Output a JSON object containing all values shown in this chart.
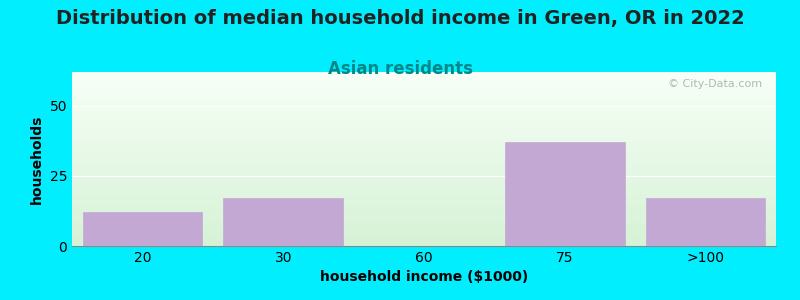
{
  "title": "Distribution of median household income in Green, OR in 2022",
  "subtitle": "Asian residents",
  "xlabel": "household income ($1000)",
  "ylabel": "households",
  "categories": [
    "20",
    "30",
    "60",
    "75",
    ">100"
  ],
  "values": [
    12,
    17,
    0,
    37,
    17
  ],
  "bar_color": "#c4a8d4",
  "bar_edgecolor": "#c4a8d4",
  "background_outer": "#00eeff",
  "plot_bg_top": "#f8fff8",
  "plot_bg_bottom": "#d8f0d8",
  "ylim": [
    0,
    62
  ],
  "yticks": [
    0,
    25,
    50
  ],
  "title_fontsize": 14,
  "subtitle_fontsize": 12,
  "subtitle_color": "#008888",
  "axis_label_fontsize": 10,
  "tick_fontsize": 10,
  "watermark": "© City-Data.com",
  "title_color": "#222222"
}
